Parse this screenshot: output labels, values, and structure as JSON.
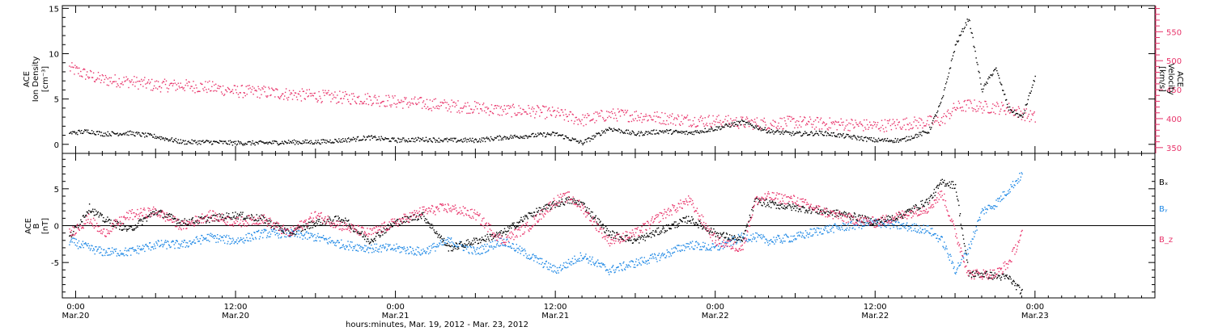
{
  "colors": {
    "black": "#000000",
    "pink": "#e8336a",
    "blue": "#1e88e5"
  },
  "x_axis": {
    "label": "hours:minutes, Mar. 19, 2012 - Mar. 23, 2012",
    "range_hours": [
      -1,
      81
    ],
    "ticks": [
      {
        "t": 0,
        "time": "0:00",
        "date": "Mar.20"
      },
      {
        "t": 12,
        "time": "12:00",
        "date": "Mar.20"
      },
      {
        "t": 24,
        "time": "0:00",
        "date": "Mar.21"
      },
      {
        "t": 36,
        "time": "12:00",
        "date": "Mar.21"
      },
      {
        "t": 48,
        "time": "0:00",
        "date": "Mar.22"
      },
      {
        "t": 60,
        "time": "12:00",
        "date": "Mar.22"
      },
      {
        "t": 72,
        "time": "0:00",
        "date": "Mar.23"
      }
    ]
  },
  "chart_data": [
    {
      "type": "scatter",
      "panel": "top",
      "ylabel_left": [
        "ACE",
        "Ion Density",
        "[cm⁻³]"
      ],
      "ylabel_right": [
        "ACE",
        "Velocity",
        "[km/s]"
      ],
      "ylim_left": [
        -1,
        15.3
      ],
      "yticks_left": [
        0,
        5,
        10,
        15
      ],
      "ylim_right": [
        340,
        595
      ],
      "yticks_right": [
        350,
        400,
        450,
        500,
        550
      ],
      "series": [
        {
          "name": "Ion Density",
          "axis": "left",
          "color": "#000000",
          "x": [
            -0.5,
            1,
            2,
            4,
            6,
            8,
            10,
            12,
            14,
            16,
            18,
            20,
            22,
            24,
            26,
            28,
            30,
            32,
            34,
            36,
            38,
            40,
            42,
            44,
            46,
            48,
            50,
            52,
            54,
            56,
            58,
            60,
            62,
            64,
            65,
            66,
            67,
            68,
            69,
            70,
            71,
            72
          ],
          "y": [
            1.3,
            1.5,
            1.2,
            1.3,
            0.9,
            0.3,
            0.3,
            0.2,
            0.2,
            0.3,
            0.3,
            0.5,
            0.8,
            0.5,
            0.6,
            0.5,
            0.5,
            0.8,
            1.0,
            1.2,
            0.2,
            1.8,
            1.2,
            1.5,
            1.3,
            1.8,
            2.5,
            1.5,
            1.2,
            1.3,
            0.9,
            0.5,
            0.5,
            1.5,
            5.0,
            11.0,
            14.0,
            6.0,
            8.5,
            4.0,
            3.0,
            7.5
          ]
        },
        {
          "name": "Velocity",
          "axis": "right",
          "color": "#e8336a",
          "x": [
            -0.5,
            1,
            2,
            4,
            6,
            8,
            10,
            12,
            14,
            16,
            18,
            20,
            22,
            24,
            26,
            28,
            30,
            32,
            34,
            36,
            38,
            40,
            42,
            44,
            46,
            48,
            50,
            52,
            54,
            56,
            58,
            60,
            62,
            64,
            65,
            66,
            67,
            68,
            69,
            70,
            71,
            72
          ],
          "y": [
            488,
            475,
            468,
            465,
            458,
            458,
            455,
            448,
            447,
            443,
            440,
            437,
            435,
            430,
            427,
            423,
            420,
            415,
            414,
            410,
            398,
            408,
            406,
            402,
            398,
            397,
            394,
            392,
            395,
            392,
            391,
            388,
            392,
            395,
            398,
            420,
            424,
            421,
            420,
            418,
            410,
            402
          ]
        }
      ]
    },
    {
      "type": "scatter",
      "panel": "bottom",
      "ylabel_left": [
        "ACE",
        "B",
        "[nT]"
      ],
      "ylim": [
        -9.8,
        9.8
      ],
      "yticks": [
        -5,
        0,
        5
      ],
      "zero_line": true,
      "series": [
        {
          "name": "Bx",
          "color": "#000000",
          "x": [
            -0.5,
            1,
            2,
            4,
            6,
            8,
            10,
            12,
            14,
            16,
            18,
            20,
            22,
            24,
            26,
            28,
            30,
            32,
            34,
            36,
            37,
            38,
            40,
            42,
            44,
            46,
            48,
            50,
            51,
            52,
            54,
            56,
            58,
            60,
            62,
            64,
            65,
            66,
            67,
            68,
            69,
            70,
            71
          ],
          "y": [
            -1.5,
            2.5,
            1.0,
            -0.5,
            2.0,
            0.5,
            1.0,
            1.5,
            1.0,
            -1.0,
            0.5,
            1.0,
            -2.0,
            0.5,
            1.5,
            -3.0,
            -2.0,
            -1.0,
            1.5,
            3.0,
            3.5,
            3.0,
            -1.0,
            -2.0,
            -0.5,
            1.0,
            -1.0,
            -2.0,
            3.5,
            3.0,
            2.5,
            2.0,
            1.5,
            0.5,
            1.5,
            3.5,
            6.0,
            5.5,
            -6.5,
            -6.5,
            -6.8,
            -7.0,
            -9.0
          ]
        },
        {
          "name": "By",
          "color": "#1e88e5",
          "x": [
            -0.5,
            1,
            2,
            4,
            6,
            8,
            10,
            12,
            14,
            16,
            18,
            20,
            22,
            24,
            26,
            28,
            30,
            32,
            34,
            36,
            37,
            38,
            40,
            42,
            44,
            46,
            48,
            50,
            51,
            52,
            54,
            56,
            58,
            60,
            62,
            64,
            65,
            66,
            67,
            68,
            69,
            70,
            71
          ],
          "y": [
            -2.0,
            -3.0,
            -3.5,
            -3.5,
            -2.5,
            -2.5,
            -1.5,
            -2.0,
            -1.0,
            -1.0,
            -1.5,
            -2.5,
            -3.0,
            -3.0,
            -3.5,
            -2.0,
            -3.5,
            -2.0,
            -4.0,
            -6.0,
            -5.0,
            -4.0,
            -6.0,
            -5.0,
            -4.0,
            -2.5,
            -3.0,
            -1.5,
            -1.5,
            -2.0,
            -1.5,
            -0.5,
            0.0,
            0.5,
            0.0,
            -0.5,
            -2.0,
            -6.0,
            -3.0,
            2.0,
            3.0,
            5.0,
            7.0
          ]
        },
        {
          "name": "Bz",
          "color": "#e8336a",
          "x": [
            -0.5,
            1,
            2,
            4,
            6,
            8,
            10,
            12,
            14,
            16,
            18,
            20,
            22,
            24,
            26,
            28,
            30,
            32,
            34,
            36,
            37,
            38,
            40,
            42,
            44,
            46,
            48,
            50,
            51,
            52,
            54,
            56,
            58,
            60,
            62,
            64,
            65,
            66,
            67,
            68,
            69,
            70,
            71
          ],
          "y": [
            -1.0,
            1.0,
            -1.0,
            1.5,
            2.0,
            0.0,
            1.5,
            0.5,
            1.0,
            -1.0,
            1.5,
            0.0,
            -1.0,
            0.5,
            2.0,
            2.5,
            1.5,
            -2.0,
            0.0,
            3.5,
            4.0,
            2.5,
            -2.0,
            -1.0,
            1.5,
            3.5,
            -2.0,
            -3.0,
            3.5,
            4.0,
            3.5,
            2.0,
            1.0,
            0.5,
            1.5,
            2.5,
            4.5,
            -1.0,
            -6.5,
            -6.5,
            -6.5,
            -5.0,
            -1.0
          ]
        }
      ],
      "legend": [
        "Bₓ",
        "Bᵧ",
        "B_z"
      ]
    }
  ]
}
